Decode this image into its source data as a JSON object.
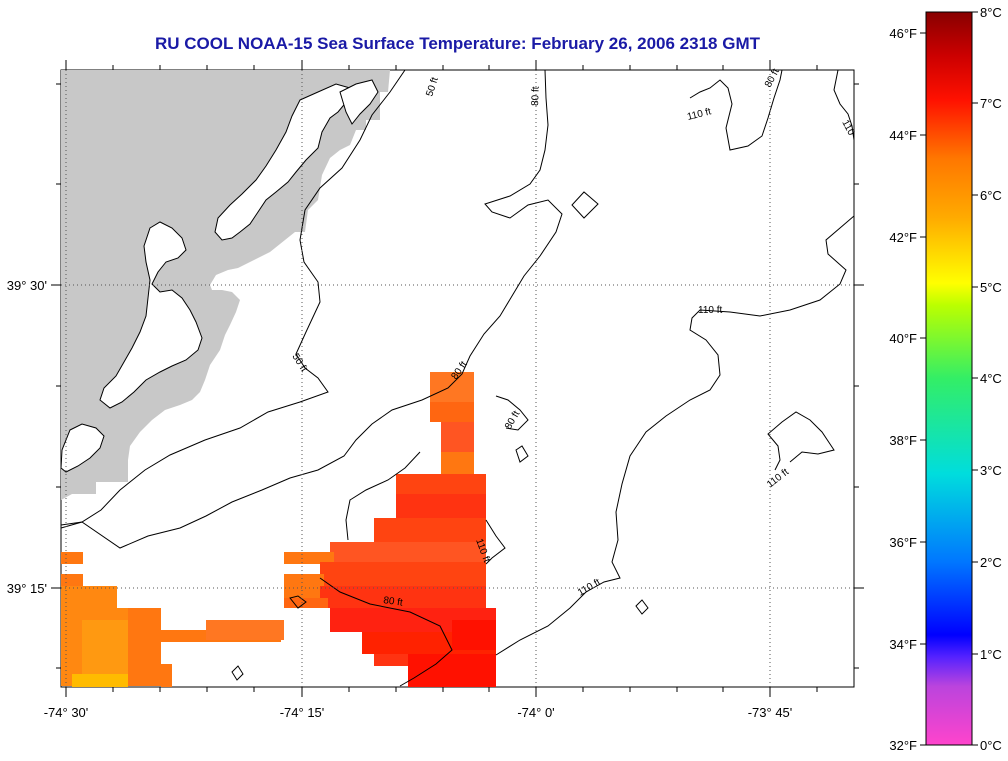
{
  "title": "RU COOL  NOAA-15  Sea Surface Temperature:  February 26, 2006 2318 GMT",
  "axes": {
    "lon_labels": [
      "-74° 30'",
      "-74° 15'",
      "-74° 0'",
      "-73° 45'"
    ],
    "lat_labels": [
      "39° 30'",
      "39° 15'"
    ]
  },
  "contour_labels": [
    "50 ft",
    "50 ft",
    "80 ft",
    "80 ft",
    "80 ft",
    "80 ft",
    "80 ft",
    "110 ft",
    "110 ft",
    "110 ft",
    "110 ft",
    "110 ft",
    "110"
  ],
  "colorbar": {
    "fahrenheit_labels": [
      "46°F",
      "44°F",
      "42°F",
      "40°F",
      "38°F",
      "36°F",
      "34°F",
      "32°F"
    ],
    "celsius_labels": [
      "8°C",
      "7°C",
      "6°C",
      "5°C",
      "4°C",
      "3°C",
      "2°C",
      "1°C",
      "0°C"
    ],
    "range_c": [
      0,
      8
    ],
    "palette": [
      "#ff44cc",
      "#9944ee",
      "#0000ff",
      "#0088ff",
      "#00dddd",
      "#00dd88",
      "#66ee33",
      "#ffff00",
      "#ffcc00",
      "#ff8800",
      "#ff2200",
      "#dd0000",
      "#880000"
    ]
  },
  "colors": {
    "land": "#c8c8c8",
    "sst_high": "#ff2200",
    "sst_mid": "#ff7700",
    "sst_low": "#ffaa00"
  }
}
